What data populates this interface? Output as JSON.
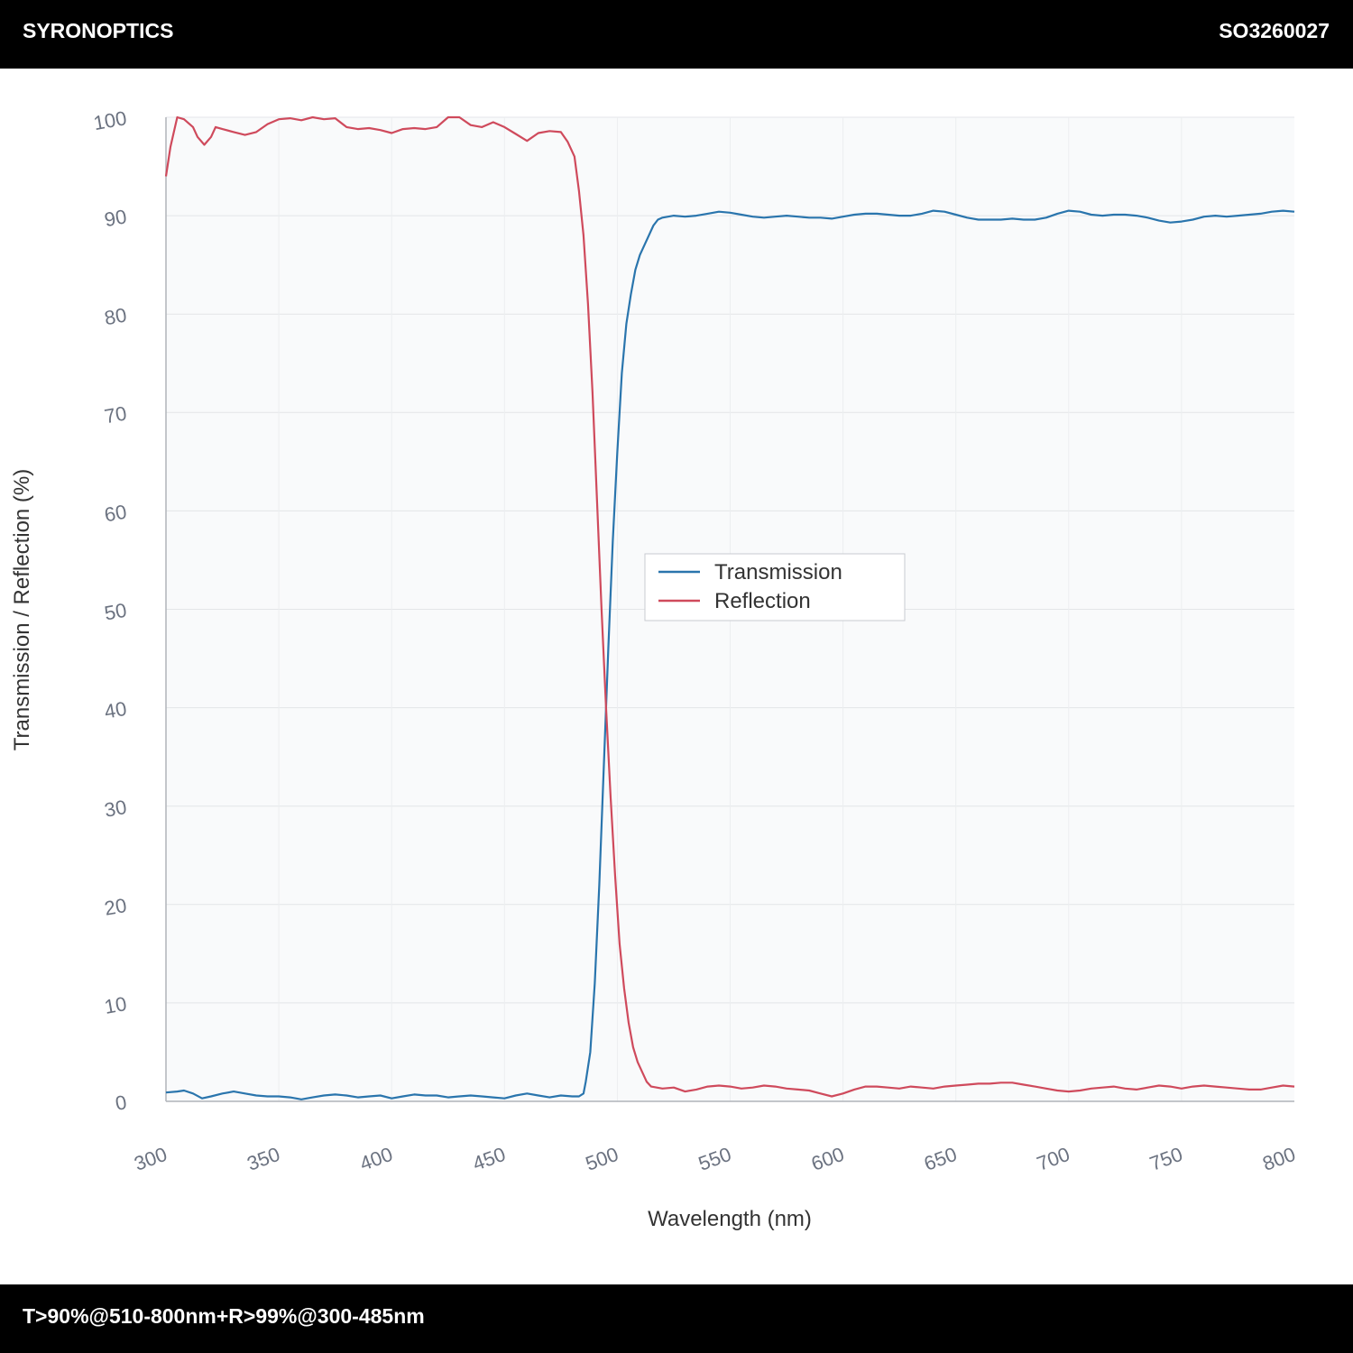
{
  "header": {
    "brand": "SYRONOPTICS",
    "part_number": "SO3260027"
  },
  "footer": {
    "spec": "T>90%@510-800nm+R>99%@300-485nm"
  },
  "colors": {
    "transmission": "#2a75ad",
    "reflection": "#cf4a5c",
    "bar": "#000000",
    "plot_bg": "#f9fafb",
    "grid": "#e3e5e8",
    "tick_text": "#6b7280"
  },
  "chart_data": {
    "type": "line",
    "title": "",
    "xlabel": "Wavelength (nm)",
    "ylabel": "Transmission / Reflection (%)",
    "xlim": [
      300,
      800
    ],
    "ylim": [
      0,
      100
    ],
    "x_ticks": [
      "300",
      "350",
      "400",
      "450",
      "500",
      "550",
      "600",
      "650",
      "700",
      "750",
      "800"
    ],
    "y_ticks": [
      "0",
      "10",
      "20",
      "30",
      "40",
      "50",
      "60",
      "70",
      "80",
      "90",
      "100"
    ],
    "grid": true,
    "legend": "center",
    "series": [
      {
        "name": "Transmission",
        "color": "#2a75ad",
        "points": [
          [
            300,
            0.9
          ],
          [
            305,
            1.0
          ],
          [
            308,
            1.1
          ],
          [
            312,
            0.8
          ],
          [
            316,
            0.3
          ],
          [
            320,
            0.5
          ],
          [
            325,
            0.8
          ],
          [
            330,
            1.0
          ],
          [
            335,
            0.8
          ],
          [
            340,
            0.6
          ],
          [
            345,
            0.5
          ],
          [
            350,
            0.5
          ],
          [
            355,
            0.4
          ],
          [
            360,
            0.2
          ],
          [
            365,
            0.4
          ],
          [
            370,
            0.6
          ],
          [
            375,
            0.7
          ],
          [
            380,
            0.6
          ],
          [
            385,
            0.4
          ],
          [
            390,
            0.5
          ],
          [
            395,
            0.6
          ],
          [
            400,
            0.3
          ],
          [
            405,
            0.5
          ],
          [
            410,
            0.7
          ],
          [
            415,
            0.6
          ],
          [
            420,
            0.6
          ],
          [
            425,
            0.4
          ],
          [
            430,
            0.5
          ],
          [
            435,
            0.6
          ],
          [
            440,
            0.5
          ],
          [
            445,
            0.4
          ],
          [
            450,
            0.3
          ],
          [
            455,
            0.6
          ],
          [
            460,
            0.8
          ],
          [
            465,
            0.6
          ],
          [
            470,
            0.4
          ],
          [
            475,
            0.6
          ],
          [
            480,
            0.5
          ],
          [
            483,
            0.5
          ],
          [
            485,
            0.8
          ],
          [
            486,
            2.0
          ],
          [
            488,
            5.0
          ],
          [
            490,
            12.0
          ],
          [
            492,
            22.0
          ],
          [
            494,
            34.0
          ],
          [
            496,
            46.0
          ],
          [
            498,
            57.0
          ],
          [
            500,
            66.0
          ],
          [
            502,
            74.0
          ],
          [
            504,
            79.0
          ],
          [
            506,
            82.0
          ],
          [
            508,
            84.5
          ],
          [
            510,
            86.0
          ],
          [
            512,
            87.0
          ],
          [
            514,
            88.0
          ],
          [
            516,
            89.0
          ],
          [
            518,
            89.6
          ],
          [
            520,
            89.8
          ],
          [
            525,
            90.0
          ],
          [
            530,
            89.9
          ],
          [
            535,
            90.0
          ],
          [
            540,
            90.2
          ],
          [
            545,
            90.4
          ],
          [
            550,
            90.3
          ],
          [
            555,
            90.1
          ],
          [
            560,
            89.9
          ],
          [
            565,
            89.8
          ],
          [
            570,
            89.9
          ],
          [
            575,
            90.0
          ],
          [
            580,
            89.9
          ],
          [
            585,
            89.8
          ],
          [
            590,
            89.8
          ],
          [
            595,
            89.7
          ],
          [
            600,
            89.9
          ],
          [
            605,
            90.1
          ],
          [
            610,
            90.2
          ],
          [
            615,
            90.2
          ],
          [
            620,
            90.1
          ],
          [
            625,
            90.0
          ],
          [
            630,
            90.0
          ],
          [
            635,
            90.2
          ],
          [
            640,
            90.5
          ],
          [
            645,
            90.4
          ],
          [
            650,
            90.1
          ],
          [
            655,
            89.8
          ],
          [
            660,
            89.6
          ],
          [
            665,
            89.6
          ],
          [
            670,
            89.6
          ],
          [
            675,
            89.7
          ],
          [
            680,
            89.6
          ],
          [
            685,
            89.6
          ],
          [
            690,
            89.8
          ],
          [
            695,
            90.2
          ],
          [
            700,
            90.5
          ],
          [
            705,
            90.4
          ],
          [
            710,
            90.1
          ],
          [
            715,
            90.0
          ],
          [
            720,
            90.1
          ],
          [
            725,
            90.1
          ],
          [
            730,
            90.0
          ],
          [
            735,
            89.8
          ],
          [
            740,
            89.5
          ],
          [
            745,
            89.3
          ],
          [
            750,
            89.4
          ],
          [
            755,
            89.6
          ],
          [
            760,
            89.9
          ],
          [
            765,
            90.0
          ],
          [
            770,
            89.9
          ],
          [
            775,
            90.0
          ],
          [
            780,
            90.1
          ],
          [
            785,
            90.2
          ],
          [
            790,
            90.4
          ],
          [
            795,
            90.5
          ],
          [
            800,
            90.4
          ]
        ]
      },
      {
        "name": "Reflection",
        "color": "#cf4a5c",
        "points": [
          [
            300,
            94.0
          ],
          [
            302,
            97.0
          ],
          [
            304,
            99.0
          ],
          [
            305,
            100.0
          ],
          [
            308,
            99.8
          ],
          [
            312,
            99.0
          ],
          [
            314,
            98.0
          ],
          [
            317,
            97.2
          ],
          [
            320,
            98.0
          ],
          [
            322,
            99.0
          ],
          [
            325,
            98.8
          ],
          [
            330,
            98.5
          ],
          [
            335,
            98.2
          ],
          [
            340,
            98.5
          ],
          [
            345,
            99.3
          ],
          [
            350,
            99.8
          ],
          [
            355,
            99.9
          ],
          [
            360,
            99.7
          ],
          [
            365,
            100.0
          ],
          [
            370,
            99.8
          ],
          [
            375,
            99.9
          ],
          [
            380,
            99.0
          ],
          [
            385,
            98.8
          ],
          [
            390,
            98.9
          ],
          [
            395,
            98.7
          ],
          [
            400,
            98.4
          ],
          [
            405,
            98.8
          ],
          [
            410,
            98.9
          ],
          [
            415,
            98.8
          ],
          [
            420,
            99.0
          ],
          [
            425,
            100.0
          ],
          [
            430,
            100.0
          ],
          [
            435,
            99.2
          ],
          [
            440,
            99.0
          ],
          [
            445,
            99.5
          ],
          [
            450,
            99.0
          ],
          [
            455,
            98.3
          ],
          [
            460,
            97.6
          ],
          [
            465,
            98.4
          ],
          [
            470,
            98.6
          ],
          [
            475,
            98.5
          ],
          [
            478,
            97.5
          ],
          [
            481,
            96.0
          ],
          [
            483,
            92.5
          ],
          [
            485,
            88.0
          ],
          [
            487,
            81.0
          ],
          [
            489,
            72.0
          ],
          [
            491,
            61.0
          ],
          [
            493,
            50.0
          ],
          [
            495,
            40.0
          ],
          [
            497,
            31.0
          ],
          [
            499,
            23.0
          ],
          [
            501,
            16.0
          ],
          [
            503,
            11.5
          ],
          [
            505,
            8.0
          ],
          [
            507,
            5.5
          ],
          [
            509,
            4.0
          ],
          [
            511,
            3.0
          ],
          [
            513,
            2.0
          ],
          [
            515,
            1.5
          ],
          [
            520,
            1.3
          ],
          [
            525,
            1.4
          ],
          [
            530,
            1.0
          ],
          [
            535,
            1.2
          ],
          [
            540,
            1.5
          ],
          [
            545,
            1.6
          ],
          [
            550,
            1.5
          ],
          [
            555,
            1.3
          ],
          [
            560,
            1.4
          ],
          [
            565,
            1.6
          ],
          [
            570,
            1.5
          ],
          [
            575,
            1.3
          ],
          [
            580,
            1.2
          ],
          [
            585,
            1.1
          ],
          [
            590,
            0.8
          ],
          [
            595,
            0.5
          ],
          [
            600,
            0.8
          ],
          [
            605,
            1.2
          ],
          [
            610,
            1.5
          ],
          [
            615,
            1.5
          ],
          [
            620,
            1.4
          ],
          [
            625,
            1.3
          ],
          [
            630,
            1.5
          ],
          [
            635,
            1.4
          ],
          [
            640,
            1.3
          ],
          [
            645,
            1.5
          ],
          [
            650,
            1.6
          ],
          [
            655,
            1.7
          ],
          [
            660,
            1.8
          ],
          [
            665,
            1.8
          ],
          [
            670,
            1.9
          ],
          [
            675,
            1.9
          ],
          [
            680,
            1.7
          ],
          [
            685,
            1.5
          ],
          [
            690,
            1.3
          ],
          [
            695,
            1.1
          ],
          [
            700,
            1.0
          ],
          [
            705,
            1.1
          ],
          [
            710,
            1.3
          ],
          [
            715,
            1.4
          ],
          [
            720,
            1.5
          ],
          [
            725,
            1.3
          ],
          [
            730,
            1.2
          ],
          [
            735,
            1.4
          ],
          [
            740,
            1.6
          ],
          [
            745,
            1.5
          ],
          [
            750,
            1.3
          ],
          [
            755,
            1.5
          ],
          [
            760,
            1.6
          ],
          [
            765,
            1.5
          ],
          [
            770,
            1.4
          ],
          [
            775,
            1.3
          ],
          [
            780,
            1.2
          ],
          [
            785,
            1.2
          ],
          [
            790,
            1.4
          ],
          [
            795,
            1.6
          ],
          [
            800,
            1.5
          ]
        ]
      }
    ]
  }
}
